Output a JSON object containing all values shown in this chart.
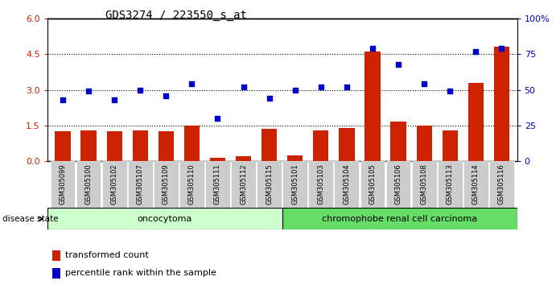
{
  "title": "GDS3274 / 223550_s_at",
  "samples": [
    "GSM305099",
    "GSM305100",
    "GSM305102",
    "GSM305107",
    "GSM305109",
    "GSM305110",
    "GSM305111",
    "GSM305112",
    "GSM305115",
    "GSM305101",
    "GSM305103",
    "GSM305104",
    "GSM305105",
    "GSM305106",
    "GSM305108",
    "GSM305113",
    "GSM305114",
    "GSM305116"
  ],
  "transformed_count": [
    1.25,
    1.3,
    1.25,
    1.3,
    1.25,
    1.5,
    0.15,
    0.22,
    1.35,
    0.25,
    1.3,
    1.4,
    4.6,
    1.65,
    1.5,
    1.3,
    3.3,
    4.8
  ],
  "percentile_rank": [
    43,
    49,
    43,
    50,
    46,
    54,
    30,
    52,
    44,
    50,
    52,
    52,
    79,
    68,
    54,
    49,
    77,
    79
  ],
  "group1_count": 9,
  "group1_label": "oncocytoma",
  "group2_label": "chromophobe renal cell carcinoma",
  "disease_state_label": "disease state",
  "left_yticks": [
    0,
    1.5,
    3.0,
    4.5,
    6
  ],
  "right_yticks": [
    0,
    25,
    50,
    75,
    100
  ],
  "right_ytick_labels": [
    "0",
    "25",
    "50",
    "75",
    "100%"
  ],
  "bar_color": "#cc2200",
  "dot_color": "#0000cc",
  "group1_bg": "#ccffcc",
  "group2_bg": "#66dd66",
  "tick_bg": "#cccccc",
  "legend_bar_label": "transformed count",
  "legend_dot_label": "percentile rank within the sample",
  "ylim_left": [
    0,
    6
  ],
  "ylim_right": [
    0,
    100
  ],
  "grid_vals": [
    1.5,
    3.0,
    4.5
  ]
}
